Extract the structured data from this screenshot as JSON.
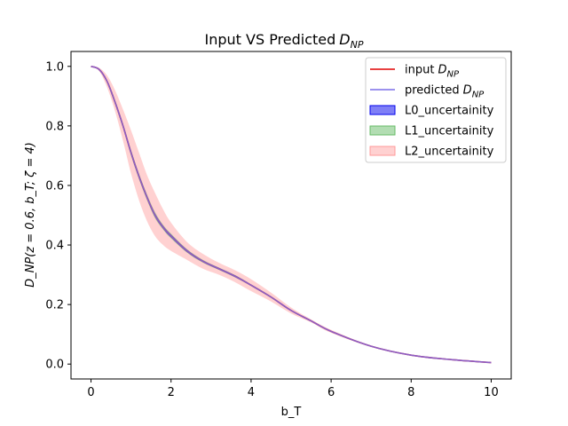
{
  "chart_data": {
    "type": "line",
    "title": "Input VS Predicted",
    "title_sub": "NP",
    "xlabel": "b_T",
    "ylabel": "D_NP(z = 0.6, b_T; ζ = 4)",
    "xlim": [
      -0.5,
      10.5
    ],
    "ylim": [
      -0.05,
      1.05
    ],
    "xticks": [
      0,
      2,
      4,
      6,
      8,
      10
    ],
    "yticks": [
      0.0,
      0.2,
      0.4,
      0.6,
      0.8,
      1.0
    ],
    "grid": false,
    "legend_placement": "upper right",
    "x": [
      0,
      0.2,
      0.4,
      0.6,
      0.8,
      1.0,
      1.2,
      1.4,
      1.6,
      1.8,
      2.0,
      2.4,
      2.8,
      3.2,
      3.6,
      4.0,
      4.5,
      5.0,
      5.5,
      6.0,
      7.0,
      8.0,
      9.0,
      10.0
    ],
    "series": [
      {
        "name": "input",
        "name_sub": "NP",
        "color": "#e00000",
        "values": [
          1.0,
          0.99,
          0.95,
          0.88,
          0.8,
          0.71,
          0.63,
          0.56,
          0.5,
          0.46,
          0.43,
          0.38,
          0.345,
          0.32,
          0.295,
          0.265,
          0.225,
          0.18,
          0.145,
          0.11,
          0.06,
          0.03,
          0.015,
          0.005
        ]
      },
      {
        "name": "predicted",
        "name_sub": "NP",
        "color": "#7b6fe8",
        "values": [
          1.0,
          0.99,
          0.95,
          0.88,
          0.8,
          0.71,
          0.63,
          0.56,
          0.5,
          0.46,
          0.43,
          0.38,
          0.345,
          0.32,
          0.295,
          0.265,
          0.225,
          0.18,
          0.145,
          0.11,
          0.06,
          0.03,
          0.015,
          0.005
        ]
      }
    ],
    "bands": [
      {
        "name": "L2_uncertainity",
        "color": "#ff9999",
        "upper": [
          1.0,
          0.995,
          0.97,
          0.92,
          0.855,
          0.785,
          0.71,
          0.635,
          0.575,
          0.52,
          0.475,
          0.41,
          0.37,
          0.34,
          0.315,
          0.285,
          0.24,
          0.19,
          0.15,
          0.115,
          0.062,
          0.031,
          0.016,
          0.006
        ],
        "lower": [
          1.0,
          0.985,
          0.93,
          0.85,
          0.75,
          0.64,
          0.55,
          0.48,
          0.43,
          0.4,
          0.38,
          0.35,
          0.32,
          0.3,
          0.275,
          0.245,
          0.21,
          0.17,
          0.14,
          0.105,
          0.058,
          0.029,
          0.014,
          0.004
        ]
      },
      {
        "name": "L1_uncertainity",
        "color": "#66bb66",
        "upper": [
          1.0,
          0.991,
          0.955,
          0.888,
          0.808,
          0.72,
          0.64,
          0.57,
          0.51,
          0.468,
          0.438,
          0.386,
          0.35,
          0.324,
          0.299,
          0.268,
          0.228,
          0.182,
          0.147,
          0.111,
          0.06,
          0.03,
          0.015,
          0.005
        ],
        "lower": [
          1.0,
          0.989,
          0.945,
          0.872,
          0.792,
          0.7,
          0.62,
          0.55,
          0.49,
          0.452,
          0.422,
          0.374,
          0.34,
          0.316,
          0.291,
          0.262,
          0.222,
          0.178,
          0.143,
          0.109,
          0.06,
          0.03,
          0.015,
          0.005
        ]
      },
      {
        "name": "L0_uncertainity",
        "color": "#0000ee",
        "upper": [
          1.0,
          0.991,
          0.953,
          0.885,
          0.805,
          0.716,
          0.636,
          0.566,
          0.506,
          0.465,
          0.435,
          0.384,
          0.348,
          0.323,
          0.298,
          0.267,
          0.227,
          0.181,
          0.146,
          0.11,
          0.06,
          0.03,
          0.015,
          0.005
        ],
        "lower": [
          1.0,
          0.989,
          0.947,
          0.875,
          0.795,
          0.704,
          0.624,
          0.554,
          0.494,
          0.455,
          0.425,
          0.376,
          0.342,
          0.317,
          0.292,
          0.263,
          0.223,
          0.179,
          0.144,
          0.11,
          0.06,
          0.03,
          0.015,
          0.005
        ]
      }
    ],
    "legend": [
      {
        "label": "input",
        "sub": "NP",
        "kind": "line",
        "color": "#e00000"
      },
      {
        "label": "predicted",
        "sub": "NP",
        "kind": "line",
        "color": "#7b6fe8"
      },
      {
        "label": "L0_uncertainity",
        "kind": "patch",
        "color": "#0000ee"
      },
      {
        "label": "L1_uncertainity",
        "kind": "patch",
        "color": "#66bb66"
      },
      {
        "label": "L2_uncertainity",
        "kind": "patch",
        "color": "#ff9999"
      }
    ]
  }
}
